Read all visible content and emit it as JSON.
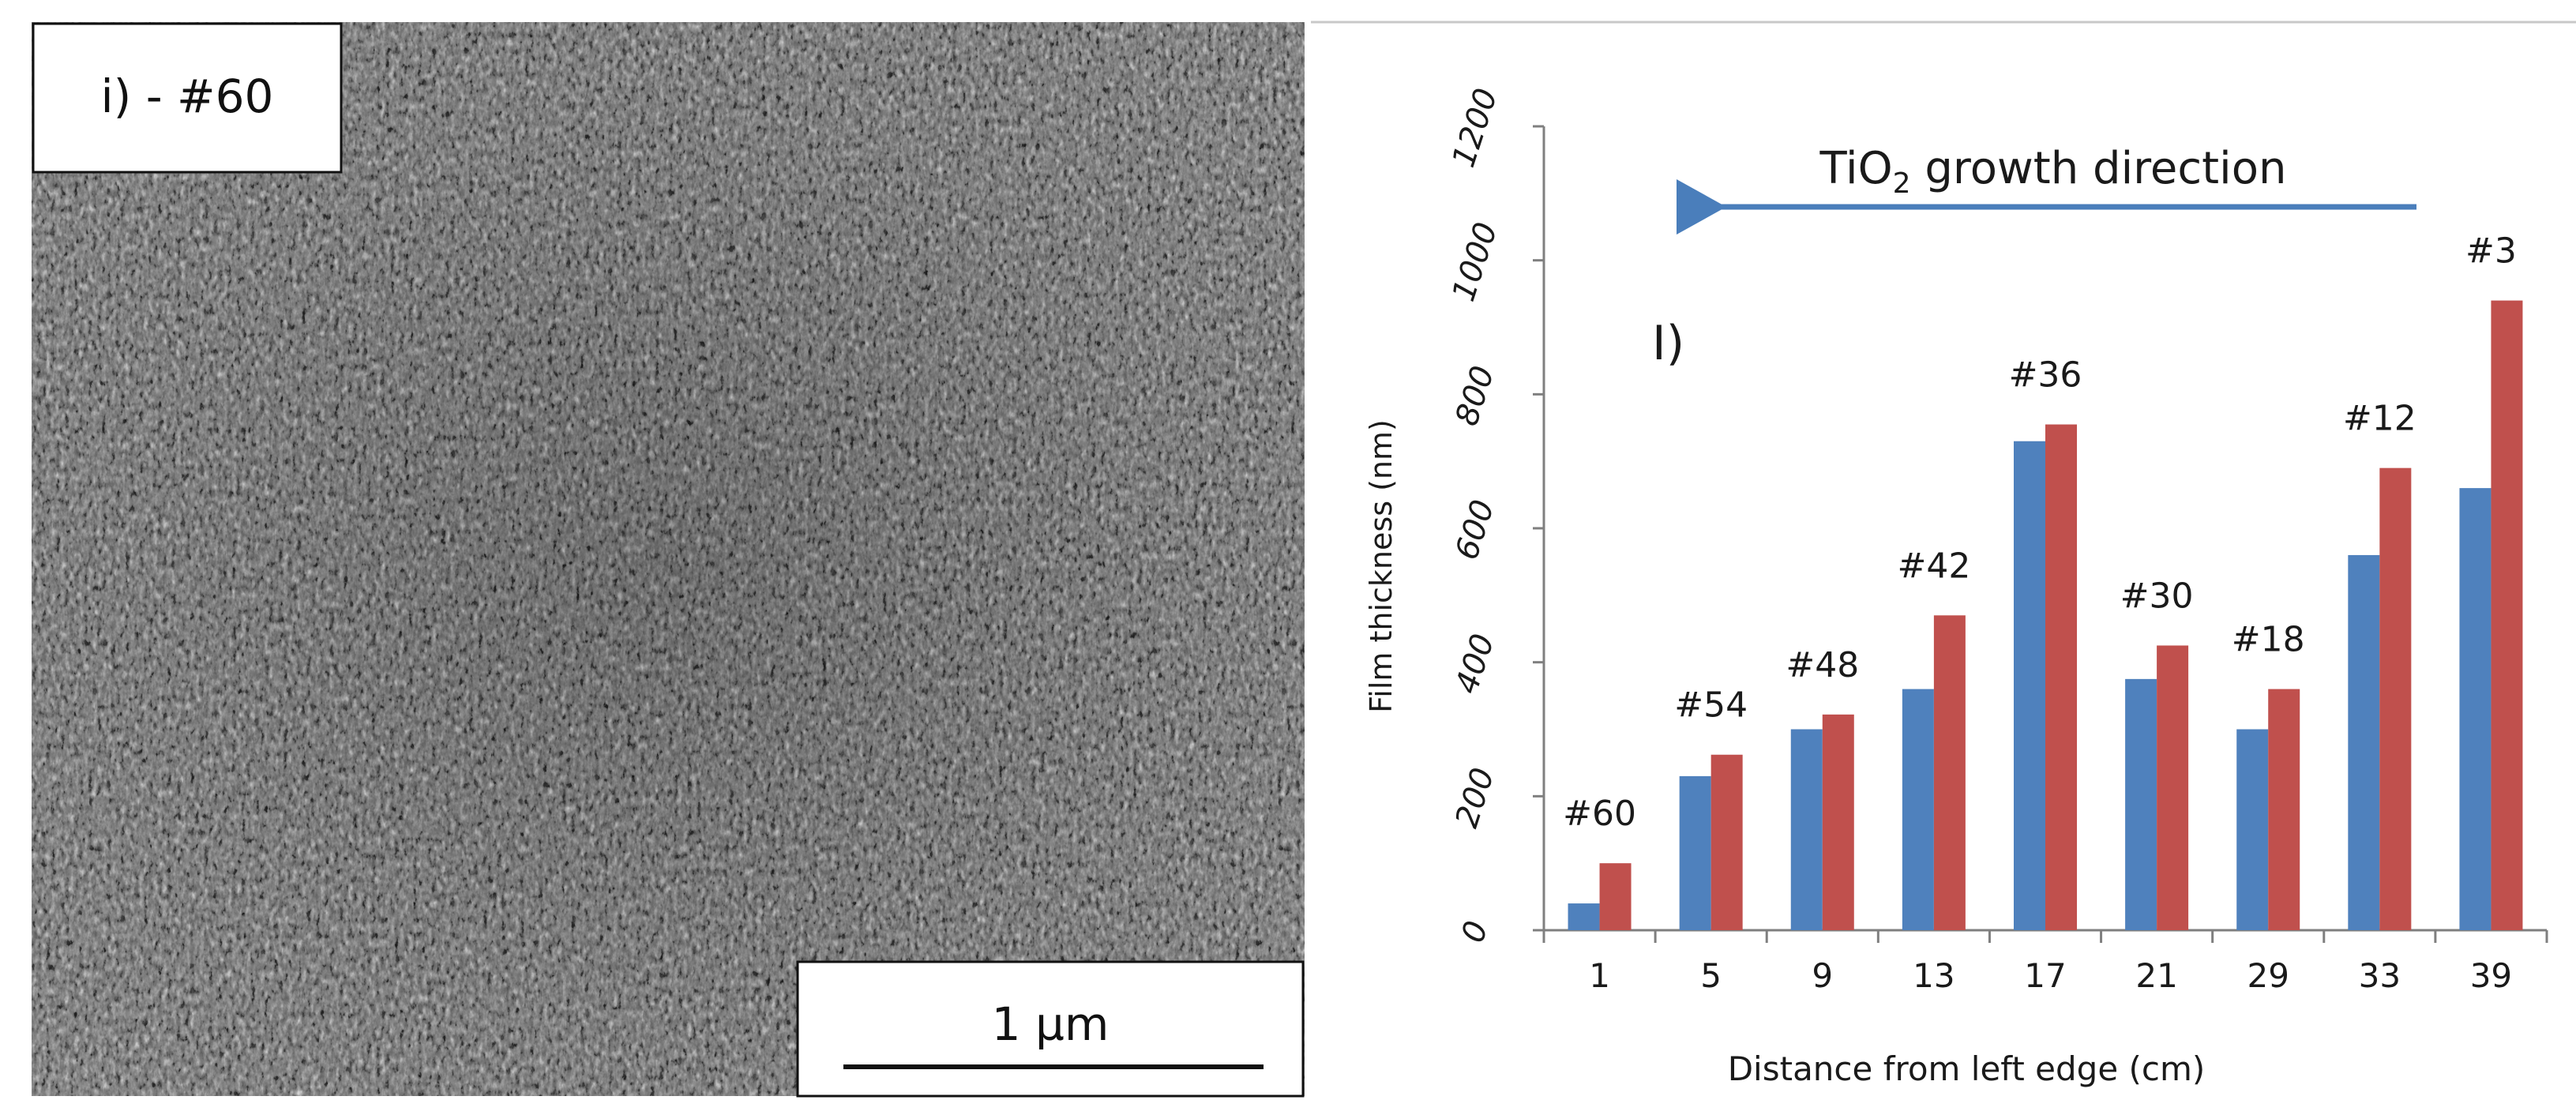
{
  "sem_panel": {
    "panel_label": "i) - #60",
    "scale_bar_label": "1 µm"
  },
  "chart_data": {
    "type": "bar",
    "panel_label": "I)",
    "annotation": {
      "prefix": "TiO",
      "subscript": "2",
      "suffix": " growth direction",
      "arrow_direction": "left",
      "arrow_color": "#4a7ebb"
    },
    "categories": [
      "1",
      "5",
      "9",
      "13",
      "17",
      "21",
      "29",
      "33",
      "39"
    ],
    "sample_labels": [
      "#60",
      "#54",
      "#48",
      "#42",
      "#36",
      "#30",
      "#18",
      "#12",
      "#3"
    ],
    "series": [
      {
        "color": "#4f81bd",
        "values": [
          40,
          230,
          300,
          360,
          730,
          375,
          300,
          560,
          660
        ]
      },
      {
        "color": "#c0504d",
        "values": [
          100,
          262,
          322,
          470,
          755,
          425,
          360,
          690,
          940
        ]
      }
    ],
    "xlabel": "Distance from left edge (cm)",
    "ylabel": "Film thickness (nm)",
    "ylim": [
      0,
      1200
    ],
    "yticks": [
      "0",
      "200",
      "400",
      "600",
      "800",
      "1000",
      "1200"
    ],
    "grid": false
  }
}
